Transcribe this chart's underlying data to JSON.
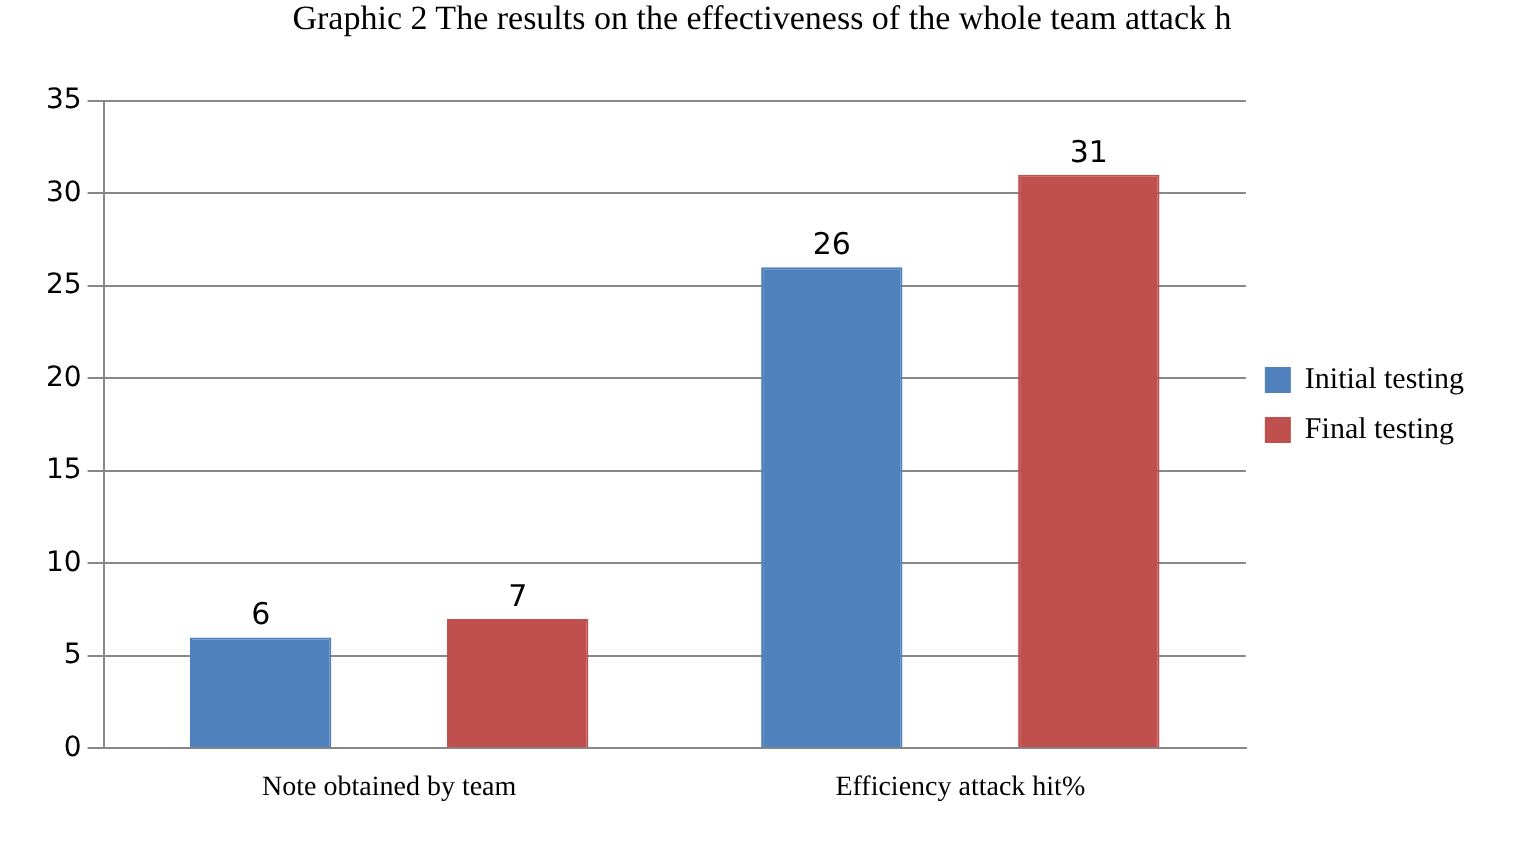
{
  "chart_data": {
    "type": "bar",
    "title": "Graphic 2 The results on the effectiveness of the whole team attack h",
    "categories": [
      "Note obtained by team",
      "Efficiency attack hit%"
    ],
    "series": [
      {
        "name": "Initial testing",
        "color": "#4f81bd",
        "values": [
          6,
          26
        ]
      },
      {
        "name": "Final testing",
        "color": "#c0504d",
        "values": [
          7,
          31
        ]
      }
    ],
    "ylim": [
      0,
      35
    ],
    "yticks": [
      0,
      5,
      10,
      15,
      20,
      25,
      30,
      35
    ],
    "grid": "y",
    "legend": "right",
    "data_labels": true
  }
}
